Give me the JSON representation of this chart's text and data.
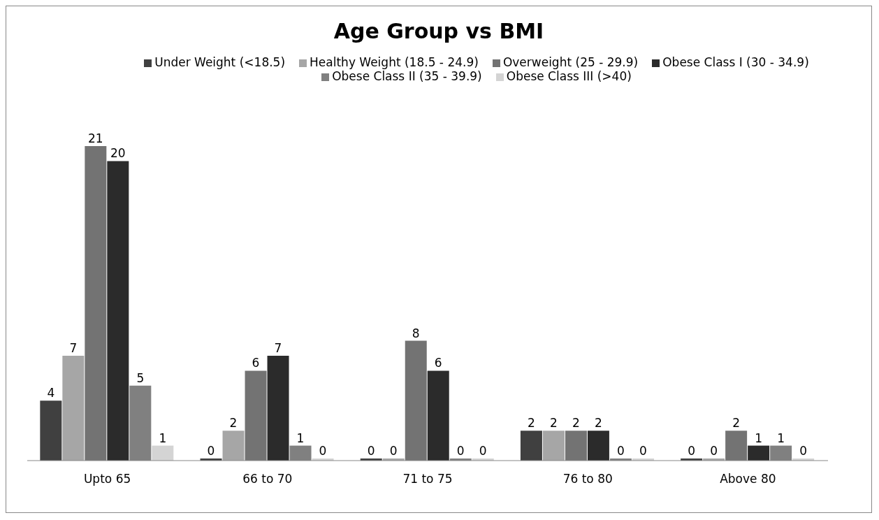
{
  "chart_data": {
    "type": "bar",
    "title": "Age Group vs BMI",
    "categories": [
      "Upto 65",
      "66 to 70",
      "71 to 75",
      "76 to 80",
      "Above 80"
    ],
    "series": [
      {
        "name": "Under Weight (<18.5)",
        "color": "#404040",
        "values": [
          4,
          0,
          0,
          2,
          0
        ]
      },
      {
        "name": "Healthy Weight (18.5 - 24.9)",
        "color": "#a6a6a6",
        "values": [
          7,
          2,
          0,
          2,
          0
        ]
      },
      {
        "name": "Overweight (25 - 29.9)",
        "color": "#737373",
        "values": [
          21,
          6,
          8,
          2,
          2
        ]
      },
      {
        "name": "Obese Class I (30 - 34.9)",
        "color": "#2b2b2b",
        "values": [
          20,
          7,
          6,
          2,
          1
        ]
      },
      {
        "name": "Obese Class II (35 - 39.9)",
        "color": "#808080",
        "values": [
          5,
          1,
          0,
          0,
          1
        ]
      },
      {
        "name": "Obese Class III (>40)",
        "color": "#d4d4d4",
        "values": [
          1,
          0,
          0,
          0,
          0
        ]
      }
    ],
    "data_labels": true,
    "legend": "top",
    "grid": false
  }
}
